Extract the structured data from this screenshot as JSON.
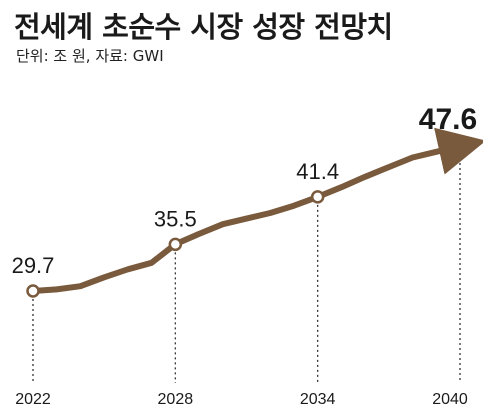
{
  "title": "전세계 초순수 시장 성장 전망치",
  "subtitle": "단위: 조 원, 자료: GWI",
  "colors": {
    "line": "#7a5a3c",
    "marker_stroke": "#7a5a3c",
    "marker_fill": "#ffffff",
    "text": "#1a1a1a",
    "dotted": "#333333"
  },
  "chart_data": {
    "type": "line",
    "title": "전세계 초순수 시장 성장 전망치",
    "subtitle": "단위: 조 원, 자료: GWI",
    "xlabel": "",
    "ylabel": "",
    "categories": [
      "2022",
      "2028",
      "2034",
      "2040"
    ],
    "series": [
      {
        "x": [
          2022,
          2023,
          2024,
          2025,
          2026,
          2027,
          2028,
          2029,
          2030,
          2031,
          2032,
          2033,
          2034,
          2035,
          2036,
          2037,
          2038,
          2039,
          2040
        ],
        "values": [
          29.7,
          29.9,
          30.3,
          31.4,
          32.4,
          33.2,
          35.5,
          36.8,
          38.0,
          38.7,
          39.4,
          40.3,
          41.4,
          42.6,
          43.9,
          45.1,
          46.3,
          47.0,
          47.6
        ]
      }
    ],
    "data_labels": [
      {
        "x": "2022",
        "label": "29.7"
      },
      {
        "x": "2028",
        "label": "35.5"
      },
      {
        "x": "2034",
        "label": "41.4"
      },
      {
        "x": "2040",
        "label": "47.6"
      }
    ],
    "grid": false,
    "legend": "none"
  }
}
